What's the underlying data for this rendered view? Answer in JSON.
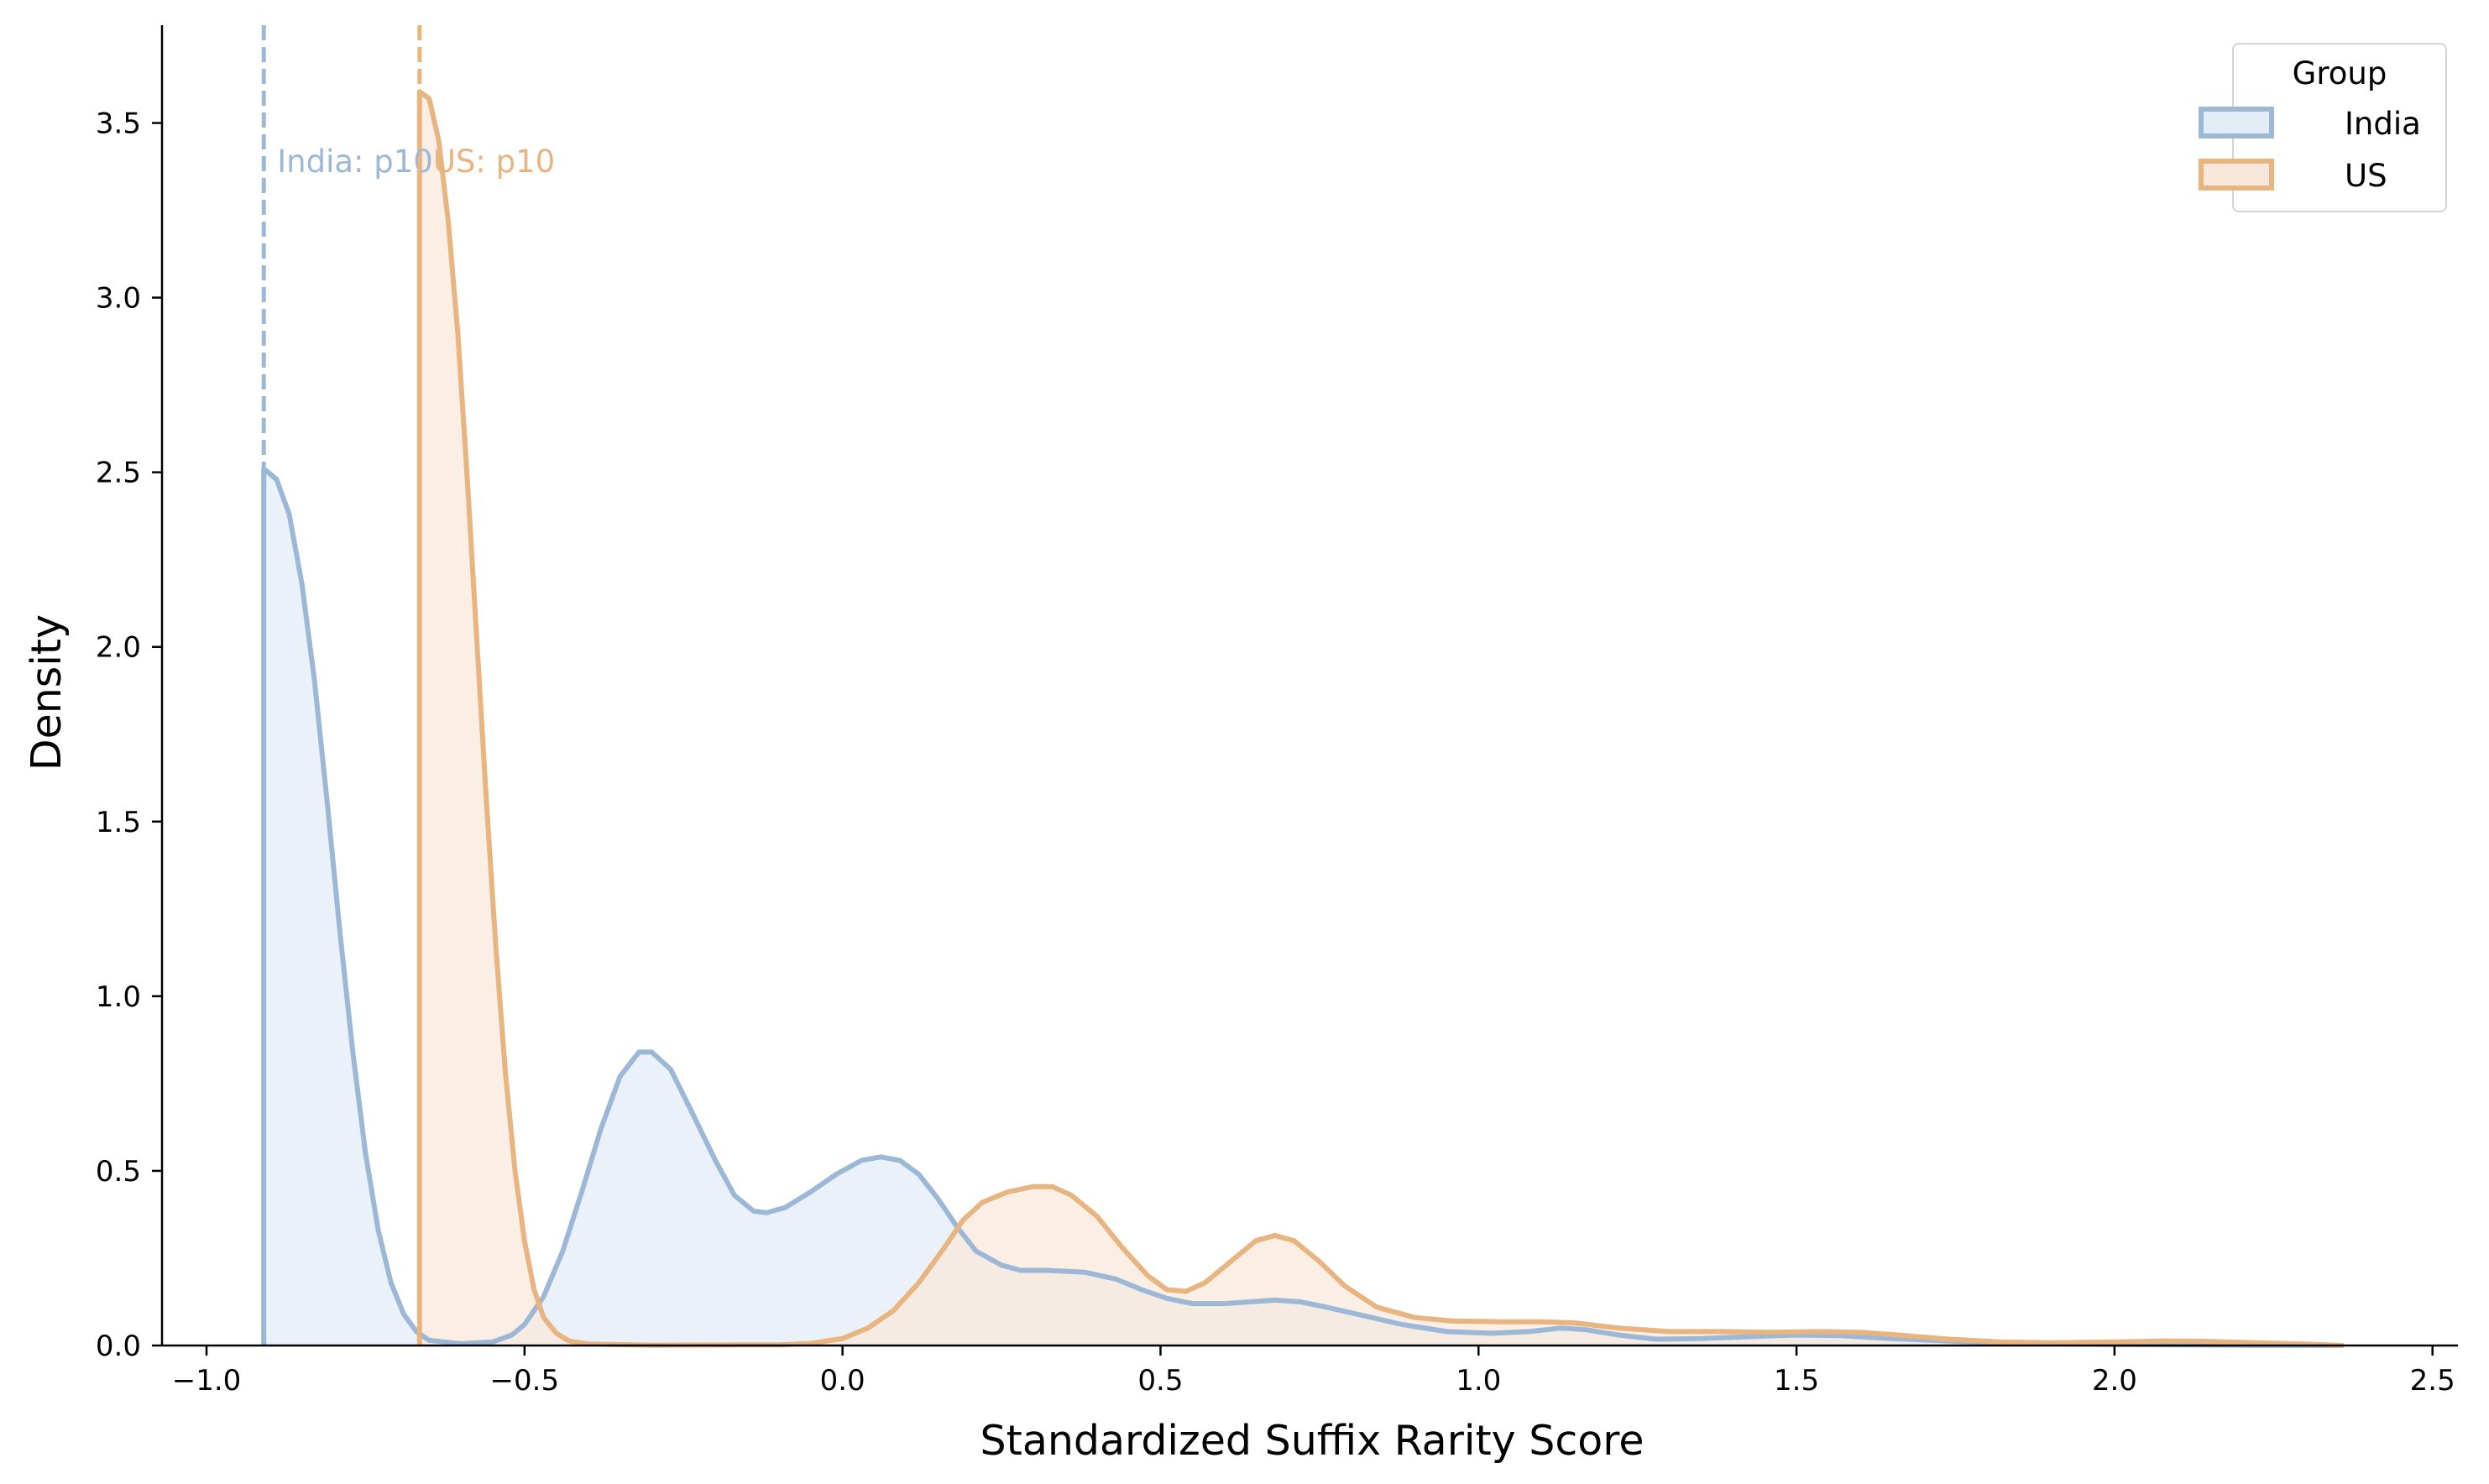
{
  "chart_data": {
    "type": "area",
    "title": "",
    "xlabel": "Standardized Suffix Rarity Score",
    "ylabel": "Density",
    "xlim": [
      -1.07,
      2.54
    ],
    "ylim": [
      0,
      3.78
    ],
    "x_ticks": [
      -1.0,
      -0.5,
      0.0,
      0.5,
      1.0,
      1.5,
      2.0,
      2.5
    ],
    "x_tick_labels": [
      "−1.0",
      "−0.5",
      "0.0",
      "0.5",
      "1.0",
      "1.5",
      "2.0",
      "2.5"
    ],
    "y_ticks": [
      0.0,
      0.5,
      1.0,
      1.5,
      2.0,
      2.5,
      3.0,
      3.5
    ],
    "y_tick_labels": [
      "0.0",
      "0.5",
      "1.0",
      "1.5",
      "2.0",
      "2.5",
      "3.0",
      "3.5"
    ],
    "grid": false,
    "legend": {
      "title": "Group",
      "placement": "top-right",
      "entries": [
        "India",
        "US"
      ]
    },
    "series": [
      {
        "name": "India",
        "color": "#9cb8d6",
        "fill": "#e4ecf5",
        "points": [
          [
            -0.91,
            0.0
          ],
          [
            -0.91,
            2.51
          ],
          [
            -0.89,
            2.48
          ],
          [
            -0.87,
            2.38
          ],
          [
            -0.85,
            2.18
          ],
          [
            -0.83,
            1.9
          ],
          [
            -0.81,
            1.55
          ],
          [
            -0.79,
            1.18
          ],
          [
            -0.77,
            0.84
          ],
          [
            -0.75,
            0.55
          ],
          [
            -0.73,
            0.33
          ],
          [
            -0.71,
            0.18
          ],
          [
            -0.69,
            0.09
          ],
          [
            -0.67,
            0.04
          ],
          [
            -0.65,
            0.015
          ],
          [
            -0.6,
            0.005
          ],
          [
            -0.55,
            0.01
          ],
          [
            -0.52,
            0.03
          ],
          [
            -0.5,
            0.06
          ],
          [
            -0.47,
            0.14
          ],
          [
            -0.44,
            0.27
          ],
          [
            -0.41,
            0.44
          ],
          [
            -0.38,
            0.62
          ],
          [
            -0.35,
            0.77
          ],
          [
            -0.32,
            0.84
          ],
          [
            -0.3,
            0.84
          ],
          [
            -0.27,
            0.79
          ],
          [
            -0.24,
            0.68
          ],
          [
            -0.2,
            0.53
          ],
          [
            -0.17,
            0.43
          ],
          [
            -0.14,
            0.385
          ],
          [
            -0.12,
            0.38
          ],
          [
            -0.09,
            0.395
          ],
          [
            -0.05,
            0.44
          ],
          [
            -0.01,
            0.49
          ],
          [
            0.03,
            0.53
          ],
          [
            0.06,
            0.54
          ],
          [
            0.09,
            0.53
          ],
          [
            0.12,
            0.49
          ],
          [
            0.15,
            0.42
          ],
          [
            0.18,
            0.34
          ],
          [
            0.21,
            0.27
          ],
          [
            0.25,
            0.23
          ],
          [
            0.28,
            0.215
          ],
          [
            0.32,
            0.215
          ],
          [
            0.38,
            0.21
          ],
          [
            0.43,
            0.19
          ],
          [
            0.47,
            0.16
          ],
          [
            0.51,
            0.135
          ],
          [
            0.55,
            0.12
          ],
          [
            0.6,
            0.12
          ],
          [
            0.64,
            0.125
          ],
          [
            0.68,
            0.13
          ],
          [
            0.72,
            0.125
          ],
          [
            0.76,
            0.11
          ],
          [
            0.82,
            0.085
          ],
          [
            0.88,
            0.06
          ],
          [
            0.95,
            0.04
          ],
          [
            1.02,
            0.035
          ],
          [
            1.08,
            0.04
          ],
          [
            1.13,
            0.05
          ],
          [
            1.17,
            0.045
          ],
          [
            1.22,
            0.03
          ],
          [
            1.28,
            0.018
          ],
          [
            1.35,
            0.02
          ],
          [
            1.42,
            0.025
          ],
          [
            1.5,
            0.03
          ],
          [
            1.57,
            0.028
          ],
          [
            1.65,
            0.02
          ],
          [
            1.75,
            0.012
          ],
          [
            1.85,
            0.006
          ],
          [
            2.0,
            0.003
          ],
          [
            2.2,
            0.001
          ],
          [
            2.36,
            0.0
          ]
        ]
      },
      {
        "name": "US",
        "color": "#e8b480",
        "fill": "#f8e8dc",
        "points": [
          [
            -0.665,
            0.0
          ],
          [
            -0.665,
            3.59
          ],
          [
            -0.65,
            3.57
          ],
          [
            -0.635,
            3.45
          ],
          [
            -0.62,
            3.22
          ],
          [
            -0.605,
            2.9
          ],
          [
            -0.59,
            2.48
          ],
          [
            -0.575,
            2.02
          ],
          [
            -0.56,
            1.56
          ],
          [
            -0.545,
            1.14
          ],
          [
            -0.53,
            0.78
          ],
          [
            -0.515,
            0.5
          ],
          [
            -0.5,
            0.3
          ],
          [
            -0.485,
            0.16
          ],
          [
            -0.47,
            0.08
          ],
          [
            -0.45,
            0.035
          ],
          [
            -0.43,
            0.013
          ],
          [
            -0.4,
            0.004
          ],
          [
            -0.3,
            0.001
          ],
          [
            -0.1,
            0.002
          ],
          [
            -0.05,
            0.006
          ],
          [
            0.0,
            0.02
          ],
          [
            0.04,
            0.05
          ],
          [
            0.08,
            0.1
          ],
          [
            0.12,
            0.18
          ],
          [
            0.16,
            0.28
          ],
          [
            0.19,
            0.36
          ],
          [
            0.22,
            0.41
          ],
          [
            0.26,
            0.44
          ],
          [
            0.3,
            0.455
          ],
          [
            0.33,
            0.455
          ],
          [
            0.36,
            0.43
          ],
          [
            0.4,
            0.37
          ],
          [
            0.44,
            0.28
          ],
          [
            0.48,
            0.2
          ],
          [
            0.51,
            0.16
          ],
          [
            0.54,
            0.155
          ],
          [
            0.57,
            0.18
          ],
          [
            0.61,
            0.24
          ],
          [
            0.65,
            0.3
          ],
          [
            0.68,
            0.315
          ],
          [
            0.71,
            0.3
          ],
          [
            0.75,
            0.24
          ],
          [
            0.79,
            0.17
          ],
          [
            0.84,
            0.11
          ],
          [
            0.9,
            0.08
          ],
          [
            0.96,
            0.07
          ],
          [
            1.04,
            0.068
          ],
          [
            1.1,
            0.068
          ],
          [
            1.15,
            0.065
          ],
          [
            1.22,
            0.05
          ],
          [
            1.3,
            0.04
          ],
          [
            1.38,
            0.04
          ],
          [
            1.46,
            0.038
          ],
          [
            1.54,
            0.04
          ],
          [
            1.6,
            0.038
          ],
          [
            1.66,
            0.03
          ],
          [
            1.74,
            0.018
          ],
          [
            1.82,
            0.01
          ],
          [
            1.9,
            0.008
          ],
          [
            2.0,
            0.01
          ],
          [
            2.08,
            0.013
          ],
          [
            2.14,
            0.012
          ],
          [
            2.22,
            0.008
          ],
          [
            2.3,
            0.004
          ],
          [
            2.36,
            0.0
          ]
        ]
      }
    ],
    "reference_lines": [
      {
        "series": "India",
        "x": -0.91,
        "label": "India: p10",
        "color": "#9cb8d6"
      },
      {
        "series": "US",
        "x": -0.665,
        "label": "US: p10",
        "color": "#e8b480"
      }
    ]
  }
}
